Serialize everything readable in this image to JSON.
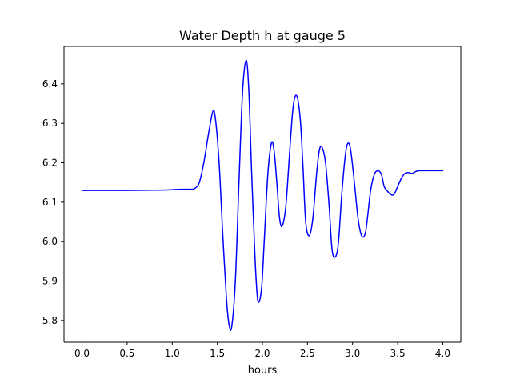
{
  "chart_data": {
    "type": "line",
    "title": "Water Depth h at gauge 5",
    "xlabel": "hours",
    "ylabel": "",
    "xlim": [
      -0.2,
      4.2
    ],
    "ylim": [
      5.745,
      6.495
    ],
    "xticks": [
      "0.0",
      "0.5",
      "1.0",
      "1.5",
      "2.0",
      "2.5",
      "3.0",
      "3.5",
      "4.0"
    ],
    "yticks": [
      "5.8",
      "5.9",
      "6.0",
      "6.1",
      "6.2",
      "6.3",
      "6.4"
    ],
    "grid": false,
    "series": [
      {
        "color": "#0000ff",
        "x": [
          0.0,
          0.5,
          0.9,
          1.0,
          1.1,
          1.2,
          1.25,
          1.3,
          1.35,
          1.4,
          1.45,
          1.48,
          1.52,
          1.56,
          1.6,
          1.63,
          1.66,
          1.7,
          1.74,
          1.78,
          1.82,
          1.85,
          1.88,
          1.92,
          1.95,
          1.99,
          2.02,
          2.06,
          2.1,
          2.13,
          2.16,
          2.19,
          2.22,
          2.26,
          2.3,
          2.34,
          2.38,
          2.42,
          2.45,
          2.48,
          2.52,
          2.56,
          2.6,
          2.63,
          2.66,
          2.7,
          2.74,
          2.77,
          2.8,
          2.84,
          2.88,
          2.92,
          2.95,
          2.98,
          3.02,
          3.06,
          3.1,
          3.14,
          3.17,
          3.2,
          3.24,
          3.28,
          3.32,
          3.35,
          3.38,
          3.42,
          3.46,
          3.5,
          3.54,
          3.58,
          3.62,
          3.66,
          3.7,
          3.74,
          3.78,
          3.82,
          3.86,
          3.9,
          3.94,
          3.98,
          4.0
        ],
        "y": [
          6.13,
          6.13,
          6.131,
          6.132,
          6.133,
          6.133,
          6.135,
          6.15,
          6.2,
          6.27,
          6.33,
          6.31,
          6.2,
          6.02,
          5.86,
          5.79,
          5.785,
          5.9,
          6.15,
          6.38,
          6.46,
          6.38,
          6.18,
          5.95,
          5.85,
          5.88,
          6.0,
          6.17,
          6.25,
          6.23,
          6.15,
          6.06,
          6.04,
          6.09,
          6.22,
          6.34,
          6.37,
          6.31,
          6.19,
          6.05,
          6.015,
          6.06,
          6.17,
          6.23,
          6.24,
          6.2,
          6.09,
          5.985,
          5.96,
          5.99,
          6.12,
          6.22,
          6.25,
          6.23,
          6.15,
          6.06,
          6.015,
          6.02,
          6.07,
          6.13,
          6.17,
          6.18,
          6.17,
          6.14,
          6.13,
          6.12,
          6.12,
          6.14,
          6.16,
          6.173,
          6.175,
          6.173,
          6.178,
          6.18,
          6.18,
          6.18,
          6.18,
          6.18,
          6.18,
          6.18,
          6.18
        ]
      }
    ]
  }
}
